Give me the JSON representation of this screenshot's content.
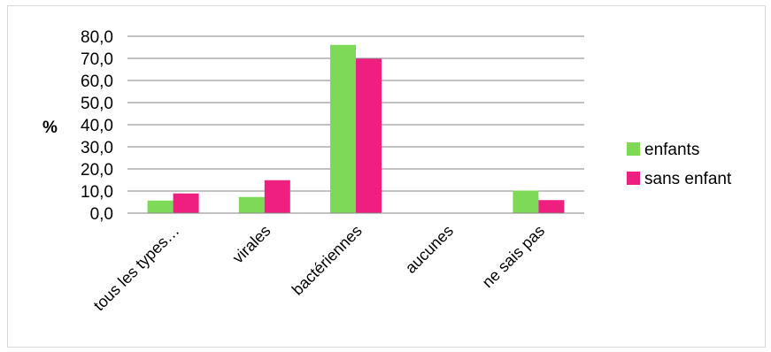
{
  "chart_data": {
    "type": "bar",
    "categories": [
      "tous les types…",
      "virales",
      "bactériennes",
      "aucunes",
      "ne sais pas"
    ],
    "series": [
      {
        "name": "enfants",
        "values": [
          5.7,
          7.3,
          76.1,
          0,
          10.2
        ],
        "color": "#7ed957"
      },
      {
        "name": "sans enfant",
        "values": [
          8.9,
          14.9,
          69.8,
          0,
          5.9
        ],
        "color": "#ee1f7e"
      }
    ],
    "ylabel": "%",
    "ylim": [
      0,
      80
    ],
    "yticks": [
      "0,0",
      "10,0",
      "20,0",
      "30,0",
      "40,0",
      "50,0",
      "60,0",
      "70,0",
      "80,0"
    ],
    "grid": true,
    "legend": "right"
  }
}
